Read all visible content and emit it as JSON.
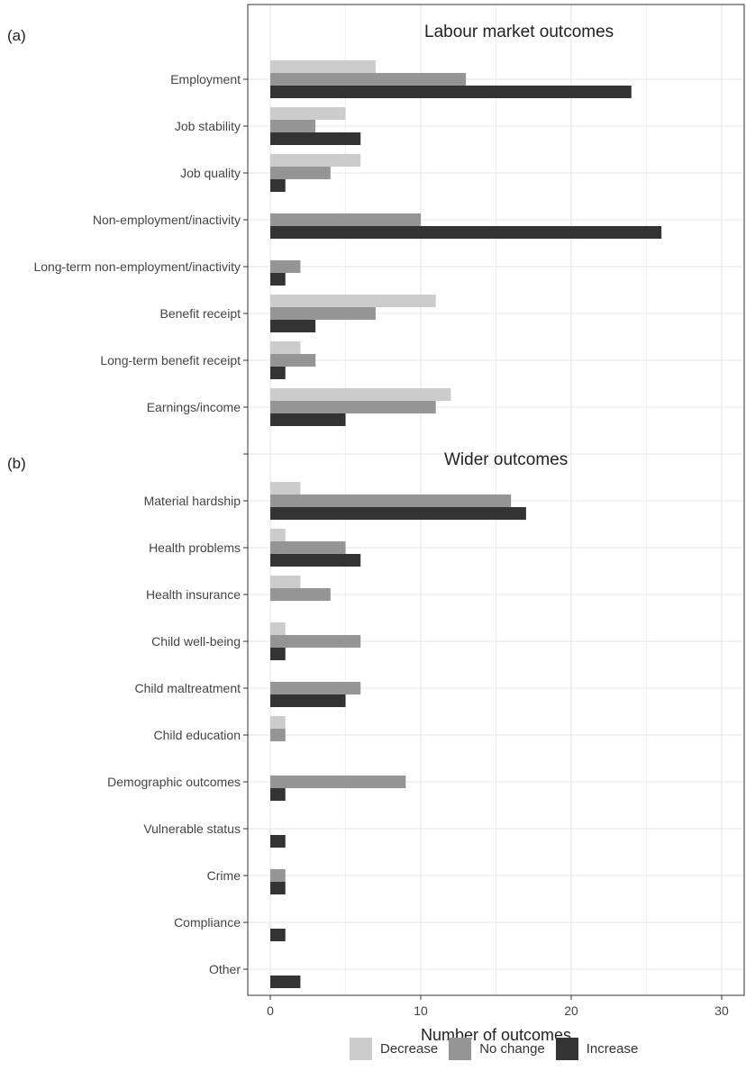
{
  "chart_data": {
    "type": "bar",
    "orientation": "horizontal",
    "panels": [
      {
        "tag": "(a)",
        "title": "Labour market outcomes",
        "categories": [
          "Employment",
          "Job stability",
          "Job quality",
          "Non-employment/inactivity",
          "Long-term non-employment/inactivity",
          "Benefit receipt",
          "Long-term benefit receipt",
          "Earnings/income"
        ],
        "series": [
          {
            "name": "Decrease",
            "values": [
              7,
              5,
              6,
              0,
              0,
              11,
              2,
              12
            ]
          },
          {
            "name": "No change",
            "values": [
              13,
              3,
              4,
              10,
              2,
              7,
              3,
              11
            ]
          },
          {
            "name": "Increase",
            "values": [
              24,
              6,
              1,
              26,
              1,
              3,
              1,
              5
            ]
          }
        ]
      },
      {
        "tag": "(b)",
        "title": "Wider outcomes",
        "categories": [
          "Material hardship",
          "Health problems",
          "Health insurance",
          "Child well-being",
          "Child maltreatment",
          "Child education",
          "Demographic outcomes",
          "Vulnerable status",
          "Crime",
          "Compliance",
          "Other"
        ],
        "series": [
          {
            "name": "Decrease",
            "values": [
              2,
              1,
              2,
              1,
              0,
              1,
              0,
              0,
              0,
              0,
              0
            ]
          },
          {
            "name": "No change",
            "values": [
              16,
              5,
              4,
              6,
              6,
              1,
              9,
              0,
              1,
              0,
              0
            ]
          },
          {
            "name": "Increase",
            "values": [
              17,
              6,
              0,
              1,
              5,
              0,
              1,
              1,
              1,
              1,
              2
            ]
          }
        ]
      }
    ],
    "xlabel": "Number of outcomes",
    "xlim": [
      -1.5,
      31.5
    ],
    "xticks": [
      0,
      10,
      20,
      30
    ],
    "grid": true,
    "legend": "bottom",
    "colors": {
      "Decrease": "#cccccc",
      "No change": "#959595",
      "Increase": "#333333"
    }
  }
}
